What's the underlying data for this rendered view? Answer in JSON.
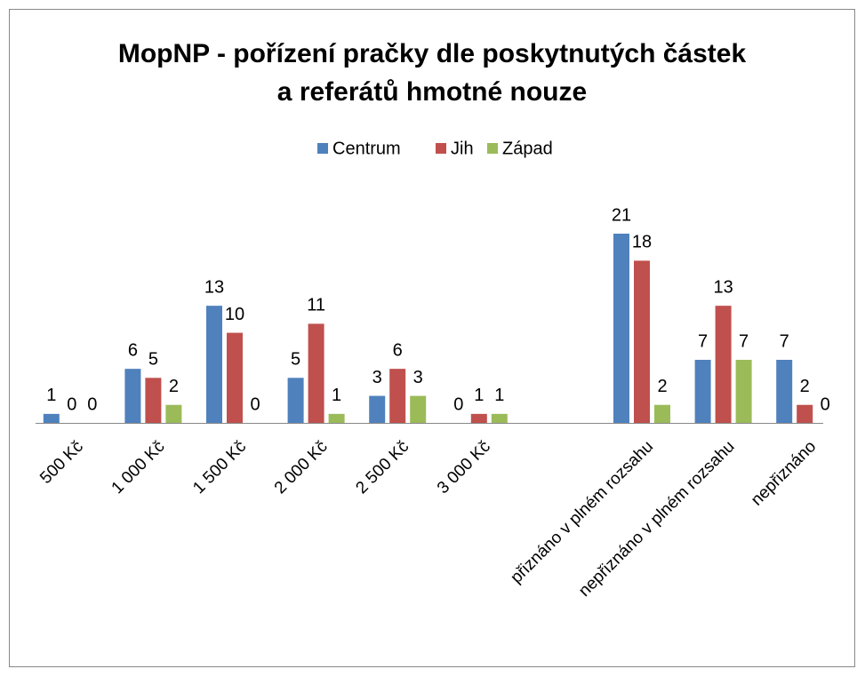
{
  "chart_data": {
    "type": "bar",
    "title": "MopNP - pořízení pračky dle poskytnutých částek",
    "subtitle": "a referátů hmotné nouze",
    "categories": [
      "500 Kč",
      "1 000 Kč",
      "1 500 Kč",
      "2 000 Kč",
      "2 500 Kč",
      "3 000 Kč",
      null,
      "přiznáno v plném rozsahu",
      "nepřiznáno v plném rozsahu",
      "nepřiznáno"
    ],
    "series": [
      {
        "name": "Centrum",
        "color": "#4f81bd",
        "values": [
          1,
          6,
          13,
          5,
          3,
          0,
          null,
          21,
          7,
          7
        ]
      },
      {
        "name": "Jih",
        "color": "#c0504d",
        "values": [
          0,
          5,
          10,
          11,
          6,
          1,
          null,
          18,
          13,
          2
        ]
      },
      {
        "name": "Západ",
        "color": "#9bbb59",
        "values": [
          0,
          2,
          0,
          1,
          3,
          1,
          null,
          2,
          7,
          0
        ]
      }
    ],
    "legend": "top"
  }
}
